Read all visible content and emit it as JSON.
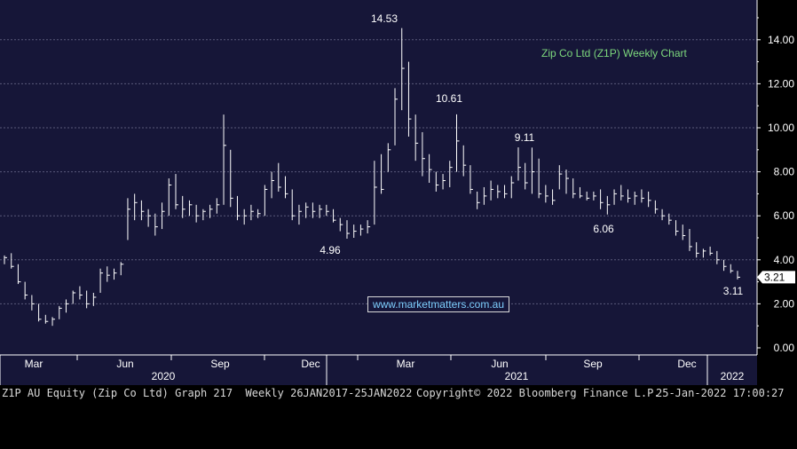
{
  "chart_data": {
    "type": "ohlc",
    "title": "Zip Co Ltd (Z1P) Weekly Chart",
    "ylim": [
      0,
      16
    ],
    "yticks": [
      "0.00",
      "2.00",
      "4.00",
      "6.00",
      "8.00",
      "10.00",
      "12.00",
      "14.00"
    ],
    "grid": true,
    "x_month_labels": [
      "Mar",
      "Jun",
      "Sep",
      "Dec",
      "Mar",
      "Jun",
      "Sep",
      "Dec"
    ],
    "x_year_labels": [
      "2020",
      "2021",
      "2022"
    ],
    "annotations": [
      {
        "label": "14.53",
        "value": 14.53,
        "week": "2021-02-22"
      },
      {
        "label": "10.61",
        "value": 10.61,
        "week": "2021-04-26"
      },
      {
        "label": "9.11",
        "value": 9.11,
        "week": "2021-06-14"
      },
      {
        "label": "4.96",
        "value": 4.96,
        "week": "2020-12-07"
      },
      {
        "label": "6.06",
        "value": 6.06,
        "week": "2021-09-20"
      },
      {
        "label": "3.11",
        "value": 3.11,
        "week": "2022-01-24"
      }
    ],
    "last_price": "3.21",
    "series": [
      {
        "values": [
          [
            4.2,
            3.8,
            4.1
          ],
          [
            4.3,
            3.6,
            3.7
          ],
          [
            3.8,
            2.9,
            3.0
          ],
          [
            3.0,
            2.2,
            2.4
          ],
          [
            2.4,
            1.7,
            2.0
          ],
          [
            2.0,
            1.2,
            1.3
          ],
          [
            1.5,
            1.1,
            1.2
          ],
          [
            1.4,
            1.0,
            1.3
          ],
          [
            1.9,
            1.3,
            1.8
          ],
          [
            2.2,
            1.6,
            2.0
          ],
          [
            2.6,
            2.0,
            2.5
          ],
          [
            2.8,
            2.2,
            2.4
          ],
          [
            2.6,
            1.8,
            2.0
          ],
          [
            2.5,
            1.9,
            2.3
          ],
          [
            3.6,
            2.5,
            3.4
          ],
          [
            3.7,
            3.0,
            3.3
          ],
          [
            3.6,
            3.1,
            3.4
          ],
          [
            3.9,
            3.3,
            3.8
          ],
          [
            6.8,
            4.9,
            6.3
          ],
          [
            7.0,
            5.8,
            6.6
          ],
          [
            6.7,
            5.8,
            6.2
          ],
          [
            6.3,
            5.5,
            6.0
          ],
          [
            6.1,
            5.1,
            5.5
          ],
          [
            6.6,
            5.4,
            6.2
          ],
          [
            7.7,
            6.0,
            7.4
          ],
          [
            7.9,
            6.3,
            6.5
          ],
          [
            6.9,
            5.9,
            6.3
          ],
          [
            6.7,
            6.0,
            6.5
          ],
          [
            6.5,
            5.7,
            6.0
          ],
          [
            6.3,
            5.8,
            6.2
          ],
          [
            6.5,
            5.9,
            6.3
          ],
          [
            6.8,
            6.1,
            6.5
          ],
          [
            10.6,
            6.5,
            9.2
          ],
          [
            9.0,
            6.4,
            6.8
          ],
          [
            6.9,
            5.8,
            6.0
          ],
          [
            6.3,
            5.6,
            6.0
          ],
          [
            6.5,
            5.8,
            6.2
          ],
          [
            6.3,
            5.9,
            6.1
          ],
          [
            7.4,
            6.0,
            7.2
          ],
          [
            8.0,
            6.8,
            7.6
          ],
          [
            8.4,
            7.1,
            7.3
          ],
          [
            7.8,
            6.8,
            7.0
          ],
          [
            7.2,
            5.8,
            6.0
          ],
          [
            6.5,
            5.6,
            6.2
          ],
          [
            6.6,
            5.9,
            6.4
          ],
          [
            6.6,
            5.9,
            6.2
          ],
          [
            6.5,
            5.9,
            6.3
          ],
          [
            6.5,
            6.0,
            6.2
          ],
          [
            6.3,
            5.7,
            5.8
          ],
          [
            5.9,
            5.3,
            5.6
          ],
          [
            5.8,
            4.96,
            5.2
          ],
          [
            5.6,
            5.0,
            5.3
          ],
          [
            5.6,
            5.1,
            5.4
          ],
          [
            5.8,
            5.2,
            5.5
          ],
          [
            8.5,
            5.6,
            7.3
          ],
          [
            8.8,
            7.0,
            7.2
          ],
          [
            9.3,
            8.0,
            9.0
          ],
          [
            11.8,
            9.2,
            11.3
          ],
          [
            14.53,
            10.8,
            12.7
          ],
          [
            13.0,
            9.6,
            10.4
          ],
          [
            10.6,
            8.5,
            9.3
          ],
          [
            9.8,
            7.8,
            8.6
          ],
          [
            8.8,
            7.5,
            8.1
          ],
          [
            8.0,
            7.1,
            7.4
          ],
          [
            7.9,
            7.2,
            7.6
          ],
          [
            8.5,
            7.3,
            8.2
          ],
          [
            10.61,
            8.0,
            9.4
          ],
          [
            9.2,
            7.8,
            8.3
          ],
          [
            8.3,
            7.0,
            7.2
          ],
          [
            7.1,
            6.3,
            6.6
          ],
          [
            7.3,
            6.5,
            6.9
          ],
          [
            7.6,
            6.7,
            7.2
          ],
          [
            7.4,
            6.8,
            7.1
          ],
          [
            7.4,
            6.8,
            7.0
          ],
          [
            7.8,
            6.8,
            7.5
          ],
          [
            9.11,
            7.6,
            8.2
          ],
          [
            8.4,
            7.2,
            7.5
          ],
          [
            9.1,
            7.0,
            8.0
          ],
          [
            8.6,
            6.8,
            7.0
          ],
          [
            7.4,
            6.6,
            6.9
          ],
          [
            7.2,
            6.5,
            6.7
          ],
          [
            8.3,
            7.2,
            7.9
          ],
          [
            8.1,
            7.0,
            7.7
          ],
          [
            7.7,
            6.8,
            7.0
          ],
          [
            7.3,
            6.8,
            6.9
          ],
          [
            7.1,
            6.7,
            6.8
          ],
          [
            7.1,
            6.7,
            6.9
          ],
          [
            7.2,
            6.3,
            6.6
          ],
          [
            6.9,
            6.06,
            6.5
          ],
          [
            7.2,
            6.5,
            7.0
          ],
          [
            7.4,
            6.7,
            6.9
          ],
          [
            7.2,
            6.6,
            6.8
          ],
          [
            7.1,
            6.5,
            6.9
          ],
          [
            7.2,
            6.6,
            6.8
          ],
          [
            7.1,
            6.4,
            6.7
          ],
          [
            6.7,
            6.1,
            6.3
          ],
          [
            6.3,
            5.8,
            6.0
          ],
          [
            6.1,
            5.6,
            5.8
          ],
          [
            5.8,
            5.1,
            5.3
          ],
          [
            5.6,
            4.9,
            5.1
          ],
          [
            5.4,
            4.4,
            4.6
          ],
          [
            4.8,
            4.1,
            4.3
          ],
          [
            4.5,
            4.1,
            4.4
          ],
          [
            4.6,
            4.2,
            4.3
          ],
          [
            4.4,
            3.8,
            4.0
          ],
          [
            4.0,
            3.5,
            3.7
          ],
          [
            3.8,
            3.4,
            3.5
          ],
          [
            3.5,
            3.11,
            3.21
          ]
        ]
      }
    ]
  },
  "footer": {
    "left": "Z1P AU Equity (Zip Co Ltd) Graph 217  Weekly 26JAN2017-25JAN2022",
    "center": "Copyright© 2022 Bloomberg Finance L.P.",
    "right": "25-Jan-2022 17:00:27"
  },
  "watermark": "www.marketmatters.com.au",
  "colors": {
    "background": "#161638",
    "bars": "#ffffff",
    "grid": "#5a5a7a",
    "title": "#7dd87d",
    "watermark": "#7fd0ff"
  }
}
